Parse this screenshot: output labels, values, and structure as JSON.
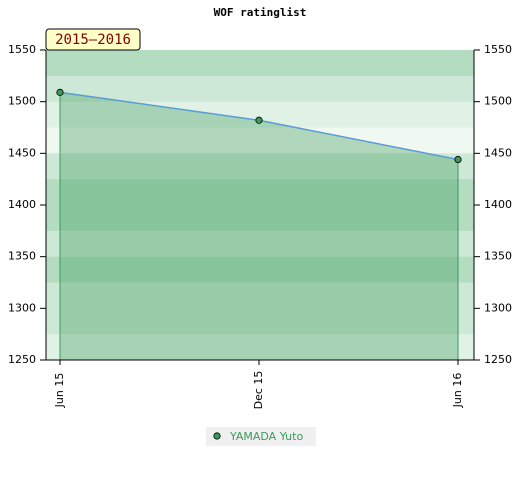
{
  "chart_data": {
    "type": "line",
    "title": "WOF ratinglist",
    "annotation": "2015–2016",
    "categories": [
      "Jun 15",
      "Dec 15",
      "Jun 16"
    ],
    "series": [
      {
        "name": "YAMADA Yuto",
        "color": "#3a9a5a",
        "values": [
          1509,
          1482,
          1444
        ]
      }
    ],
    "ylim": [
      1250,
      1550
    ],
    "yticks": [
      1250,
      1300,
      1350,
      1400,
      1450,
      1500,
      1550
    ],
    "y2lim": [
      1250,
      1550
    ],
    "y2ticks": [
      1250,
      1300,
      1350,
      1400,
      1450,
      1500,
      1550
    ],
    "legend": "bottom"
  }
}
